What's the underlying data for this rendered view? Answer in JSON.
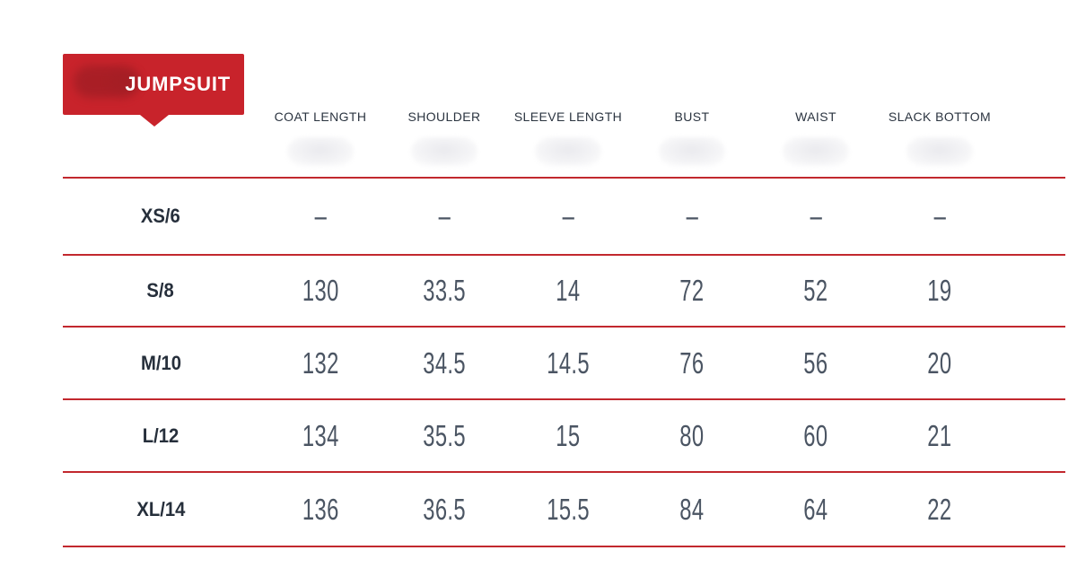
{
  "badge": {
    "label": "JUMPSUIT",
    "background_color": "#c8232b",
    "logo_blob_color": "#a41e25",
    "label_color": "#ffffff"
  },
  "table": {
    "columns": [
      "COAT LENGTH",
      "SHOULDER",
      "SLEEVE LENGTH",
      "BUST",
      "WAIST",
      "SLACK BOTTOM"
    ],
    "rows": [
      {
        "size": "XS/6",
        "values": [
          "–",
          "–",
          "–",
          "–",
          "–",
          "–"
        ]
      },
      {
        "size": "S/8",
        "values": [
          "130",
          "33.5",
          "14",
          "72",
          "52",
          "19"
        ]
      },
      {
        "size": "M/10",
        "values": [
          "132",
          "34.5",
          "14.5",
          "76",
          "56",
          "20"
        ]
      },
      {
        "size": "L/12",
        "values": [
          "134",
          "35.5",
          "15",
          "80",
          "60",
          "21"
        ]
      },
      {
        "size": "XL/14",
        "values": [
          "136",
          "36.5",
          "15.5",
          "84",
          "64",
          "22"
        ]
      }
    ],
    "divider_color": "#c2282e",
    "header_text_color": "#2b3440",
    "value_text_color": "#4b5563"
  },
  "chart_data": {
    "type": "table",
    "title": "JUMPSUIT",
    "categories": [
      "XS/6",
      "S/8",
      "M/10",
      "L/12",
      "XL/14"
    ],
    "series": [
      {
        "name": "COAT LENGTH",
        "values": [
          null,
          130,
          132,
          134,
          136
        ]
      },
      {
        "name": "SHOULDER",
        "values": [
          null,
          33.5,
          34.5,
          35.5,
          36.5
        ]
      },
      {
        "name": "SLEEVE LENGTH",
        "values": [
          null,
          14,
          14.5,
          15,
          15.5
        ]
      },
      {
        "name": "BUST",
        "values": [
          null,
          72,
          76,
          80,
          84
        ]
      },
      {
        "name": "WAIST",
        "values": [
          null,
          52,
          56,
          60,
          64
        ]
      },
      {
        "name": "SLACK BOTTOM",
        "values": [
          null,
          19,
          20,
          21,
          22
        ]
      }
    ],
    "notes": "Empty cells shown as en-dash; blurred illegible sub-labels appear under each column header."
  }
}
